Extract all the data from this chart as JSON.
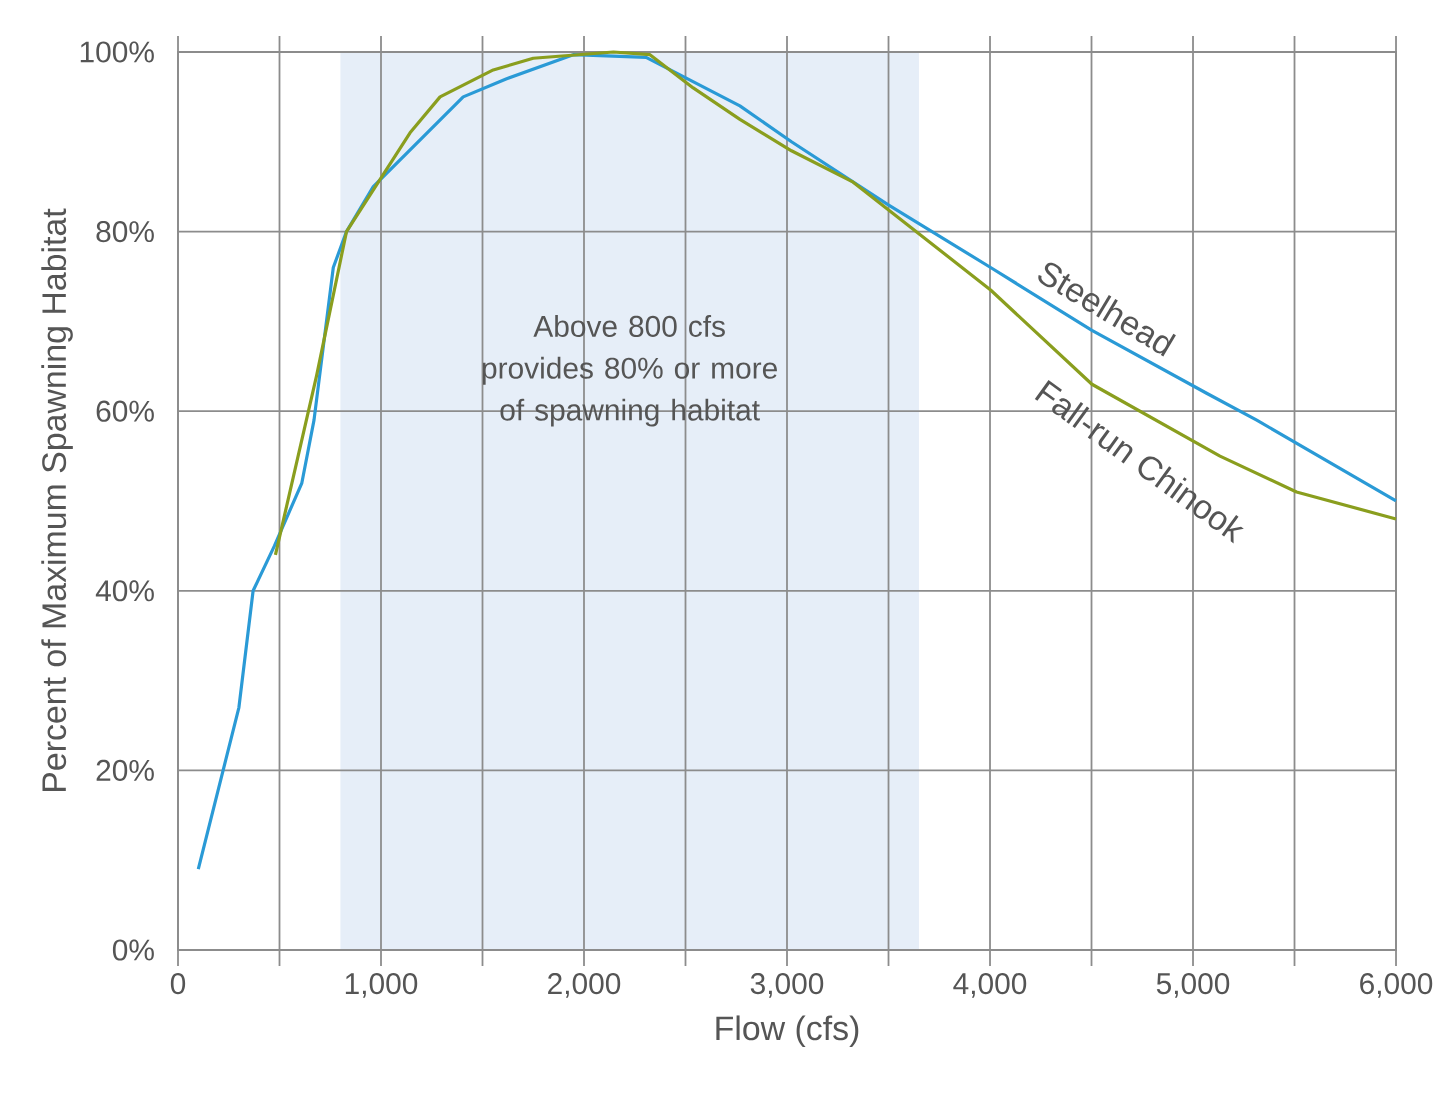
{
  "chart_data": {
    "type": "line",
    "xlabel": "Flow (cfs)",
    "ylabel": "Percent of Maximum Spawning Habitat",
    "xlim": [
      0,
      6000
    ],
    "ylim": [
      0,
      100
    ],
    "xticks": [
      0,
      {
        "value": 500,
        "label": null
      },
      {
        "value": 1000,
        "label": "1,000"
      },
      {
        "value": 1500,
        "label": null
      },
      {
        "value": 2000,
        "label": "2,000"
      },
      {
        "value": 2500,
        "label": null
      },
      {
        "value": 3000,
        "label": "3,000"
      },
      {
        "value": 3500,
        "label": null
      },
      {
        "value": 4000,
        "label": "4,000"
      },
      {
        "value": 4500,
        "label": null
      },
      {
        "value": 5000,
        "label": "5,000"
      },
      {
        "value": 5500,
        "label": null
      },
      {
        "value": 6000,
        "label": "6,000"
      }
    ],
    "yticks": [
      {
        "value": 0,
        "label": "0%"
      },
      {
        "value": 20,
        "label": "20%"
      },
      {
        "value": 40,
        "label": "40%"
      },
      {
        "value": 60,
        "label": "60%"
      },
      {
        "value": 80,
        "label": "80%"
      },
      {
        "value": 100,
        "label": "100%"
      }
    ],
    "grid": true,
    "legend": false,
    "marker": "none",
    "line_style": "solid",
    "bands": [
      {
        "axis": "x",
        "from": 800,
        "to": 3650,
        "label": "Above 800 cfs provides 80% or more of spawning habitat",
        "color": "#e6eef8"
      }
    ],
    "series": [
      {
        "name": "Steelhead",
        "color": "#2a9ad6",
        "x": [
          100,
          300,
          370,
          475,
          610,
          670,
          765,
          830,
          962,
          1405,
          1616,
          1947,
          2306,
          2768,
          3022,
          3497,
          4003,
          4502,
          5067,
          5314,
          6000
        ],
        "values": [
          9,
          27,
          40,
          45,
          52,
          59,
          76,
          80,
          85,
          95,
          97,
          99.7,
          99.4,
          94,
          90,
          83,
          76,
          69,
          62,
          59,
          50
        ]
      },
      {
        "name": "Fall-run Chinook",
        "color": "#8a9e1e",
        "x": [
          480,
          683,
          830,
          1143,
          1291,
          1553,
          1750,
          2145,
          2325,
          2538,
          2768,
          3022,
          3326,
          4003,
          4502,
          5133,
          5510,
          6000
        ],
        "values": [
          44,
          64,
          80,
          91,
          95,
          98,
          99.3,
          100,
          99.7,
          96,
          92.5,
          89,
          85.5,
          73.5,
          63,
          55,
          51,
          48
        ]
      }
    ]
  }
}
